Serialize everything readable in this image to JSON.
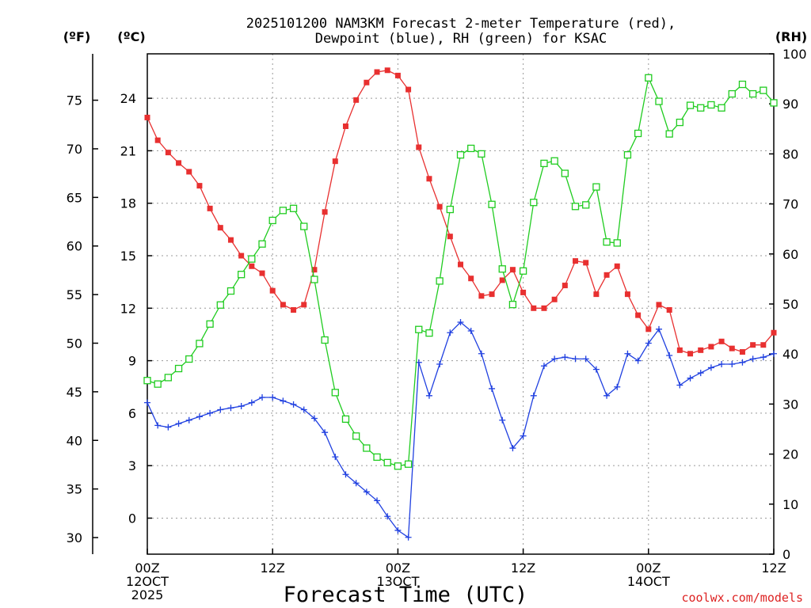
{
  "chart_data": {
    "type": "line",
    "title_line1": "2025101200 NAM3KM Forecast 2-meter Temperature (red),",
    "title_line2": "Dewpoint (blue), RH (green) for KSAC",
    "xlabel": "Forecast Time (UTC)",
    "credit": "coolwx.com/models",
    "units": {
      "fahrenheit": "(ºF)",
      "celsius": "(ºC)",
      "rh": "(RH)"
    },
    "x_ticks": [
      {
        "hour": 0,
        "lines": [
          "00Z",
          "12OCT",
          "2025"
        ]
      },
      {
        "hour": 12,
        "lines": [
          "12Z"
        ]
      },
      {
        "hour": 24,
        "lines": [
          "00Z",
          "13OCT"
        ]
      },
      {
        "hour": 36,
        "lines": [
          "12Z"
        ]
      },
      {
        "hour": 48,
        "lines": [
          "00Z",
          "14OCT"
        ]
      },
      {
        "hour": 60,
        "lines": [
          "12Z"
        ]
      }
    ],
    "xlim": [
      0,
      60
    ],
    "celsius_ticks": [
      "0",
      "3",
      "6",
      "9",
      "12",
      "15",
      "18",
      "21",
      "24"
    ],
    "fahrenheit_ticks": [
      "30",
      "35",
      "40",
      "45",
      "50",
      "55",
      "60",
      "65",
      "70",
      "75"
    ],
    "rh_ticks": [
      "0",
      "10",
      "20",
      "30",
      "40",
      "50",
      "60",
      "70",
      "80",
      "90",
      "100"
    ],
    "ylim_celsius": [
      -2.06,
      26.54
    ],
    "ylim_rh": [
      0,
      100
    ],
    "series": [
      {
        "name": "Temperature",
        "unit": "C",
        "color": "#e83030",
        "marker": "filled-square",
        "values": [
          22.9,
          21.6,
          20.9,
          20.3,
          19.8,
          19.0,
          17.7,
          16.6,
          15.9,
          15.0,
          14.4,
          14.0,
          13.0,
          12.2,
          11.9,
          12.2,
          14.2,
          17.5,
          20.4,
          22.4,
          23.9,
          24.9,
          25.5,
          25.6,
          25.3,
          24.5,
          21.2,
          19.4,
          17.8,
          16.1,
          14.5,
          13.7,
          12.7,
          12.8,
          13.6,
          14.2,
          12.9,
          12.0,
          12.0,
          12.5,
          13.3,
          14.7,
          14.6,
          12.8,
          13.9,
          14.4,
          12.8,
          11.6,
          10.8,
          12.2,
          11.9,
          9.6,
          9.4,
          9.6,
          9.8,
          10.1,
          9.7,
          9.5,
          9.9,
          9.9,
          10.6
        ]
      },
      {
        "name": "Dewpoint",
        "unit": "C",
        "color": "#2040e0",
        "marker": "plus",
        "values": [
          6.6,
          5.3,
          5.2,
          5.4,
          5.6,
          5.8,
          6.0,
          6.2,
          6.3,
          6.4,
          6.6,
          6.9,
          6.9,
          6.7,
          6.5,
          6.2,
          5.7,
          4.9,
          3.5,
          2.5,
          2.0,
          1.5,
          1.0,
          0.1,
          -0.7,
          -1.1,
          8.9,
          7.0,
          8.8,
          10.6,
          11.2,
          10.7,
          9.4,
          7.4,
          5.6,
          4.0,
          4.7,
          7.0,
          8.7,
          9.1,
          9.2,
          9.1,
          9.1,
          8.5,
          7.0,
          7.5,
          9.4,
          9.0,
          10.0,
          10.8,
          9.3,
          7.6,
          8.0,
          8.3,
          8.6,
          8.8,
          8.8,
          8.9,
          9.1,
          9.2,
          9.4
        ]
      },
      {
        "name": "RH",
        "unit": "%",
        "color": "#20cc20",
        "marker": "open-square",
        "values": [
          34.7,
          34.0,
          35.3,
          37.1,
          39.0,
          42.1,
          46.0,
          49.8,
          52.6,
          55.9,
          59.0,
          62.0,
          66.7,
          68.7,
          69.1,
          65.5,
          54.9,
          42.8,
          32.3,
          27.0,
          23.6,
          21.2,
          19.4,
          18.3,
          17.6,
          18.0,
          44.9,
          44.2,
          54.6,
          68.9,
          79.8,
          81.1,
          80.0,
          69.9,
          57.0,
          49.9,
          56.6,
          70.3,
          78.1,
          78.6,
          76.1,
          69.5,
          69.8,
          73.4,
          62.4,
          62.2,
          79.8,
          84.1,
          95.2,
          90.5,
          84.0,
          86.3,
          89.7,
          89.2,
          89.8,
          89.2,
          92.0,
          93.9,
          92.0,
          92.7,
          90.2
        ]
      }
    ]
  }
}
